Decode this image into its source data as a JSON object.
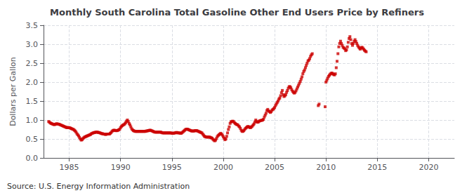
{
  "chart_data": {
    "type": "scatter",
    "title": "Monthly South Carolina Total Gasoline Other End Users Price by Refiners",
    "ylabel": "Dollars per Gallon",
    "annotations": [
      "Source: U.S. Energy Information Administration"
    ],
    "color": "#cc0000",
    "marker": "square",
    "grid": true,
    "xlim": [
      1982.5,
      2022.5
    ],
    "ylim": [
      0.0,
      3.5
    ],
    "xticks": [
      1985,
      1990,
      1995,
      2000,
      2005,
      2010,
      2015,
      2020
    ],
    "yticks": [
      {
        "value": 0.0,
        "label": "0.0"
      },
      0.5,
      {
        "value": 1.0,
        "label": "1.0"
      },
      1.5,
      {
        "value": 2.0,
        "label": "2.0"
      },
      2.5,
      {
        "value": 3.0,
        "label": "3.0"
      },
      3.5
    ],
    "x": [
      1983.0,
      1983.083,
      1983.167,
      1983.25,
      1983.333,
      1983.417,
      1983.5,
      1983.583,
      1983.667,
      1983.75,
      1983.833,
      1983.917,
      1984.0,
      1984.083,
      1984.167,
      1984.25,
      1984.333,
      1984.417,
      1984.5,
      1984.583,
      1984.667,
      1984.75,
      1984.833,
      1984.917,
      1985.0,
      1985.083,
      1985.167,
      1985.25,
      1985.333,
      1985.417,
      1985.5,
      1985.583,
      1985.667,
      1985.75,
      1985.833,
      1985.917,
      1986.0,
      1986.083,
      1986.167,
      1986.25,
      1986.333,
      1986.417,
      1986.5,
      1986.583,
      1986.667,
      1986.75,
      1986.833,
      1986.917,
      1987.0,
      1987.083,
      1987.167,
      1987.25,
      1987.333,
      1987.417,
      1987.5,
      1987.583,
      1987.667,
      1987.75,
      1987.833,
      1987.917,
      1988.0,
      1988.083,
      1988.167,
      1988.25,
      1988.333,
      1988.417,
      1988.5,
      1988.583,
      1988.667,
      1988.75,
      1988.833,
      1988.917,
      1989.0,
      1989.083,
      1989.167,
      1989.25,
      1989.333,
      1989.417,
      1989.5,
      1989.583,
      1989.667,
      1989.75,
      1989.833,
      1989.917,
      1990.0,
      1990.083,
      1990.167,
      1990.25,
      1990.333,
      1990.417,
      1990.5,
      1990.583,
      1990.667,
      1990.75,
      1990.833,
      1990.917,
      1991.0,
      1991.083,
      1991.167,
      1991.25,
      1991.333,
      1991.417,
      1991.5,
      1991.583,
      1991.667,
      1991.75,
      1991.833,
      1991.917,
      1992.0,
      1992.083,
      1992.167,
      1992.25,
      1992.333,
      1992.417,
      1992.5,
      1992.583,
      1992.667,
      1992.75,
      1992.833,
      1992.917,
      1993.0,
      1993.083,
      1993.167,
      1993.25,
      1993.333,
      1993.417,
      1993.5,
      1993.583,
      1993.667,
      1993.75,
      1993.833,
      1993.917,
      1994.0,
      1994.083,
      1994.167,
      1994.25,
      1994.333,
      1994.417,
      1994.5,
      1994.583,
      1994.667,
      1994.75,
      1994.833,
      1994.917,
      1995.0,
      1995.083,
      1995.167,
      1995.25,
      1995.333,
      1995.417,
      1995.5,
      1995.583,
      1995.667,
      1995.75,
      1995.833,
      1995.917,
      1996.0,
      1996.083,
      1996.167,
      1996.25,
      1996.333,
      1996.417,
      1996.5,
      1996.583,
      1996.667,
      1996.75,
      1996.833,
      1996.917,
      1997.0,
      1997.083,
      1997.167,
      1997.25,
      1997.333,
      1997.417,
      1997.5,
      1997.583,
      1997.667,
      1997.75,
      1997.833,
      1997.917,
      1998.0,
      1998.083,
      1998.167,
      1998.25,
      1998.333,
      1998.417,
      1998.5,
      1998.583,
      1998.667,
      1998.75,
      1998.833,
      1998.917,
      1999.0,
      1999.083,
      1999.167,
      1999.25,
      1999.333,
      1999.417,
      1999.5,
      1999.583,
      1999.667,
      1999.75,
      1999.833,
      1999.917,
      2000.0,
      2000.083,
      2000.167,
      2000.25,
      2000.333,
      2000.417,
      2000.5,
      2000.583,
      2000.667,
      2000.75,
      2000.833,
      2000.917,
      2001.0,
      2001.083,
      2001.167,
      2001.25,
      2001.333,
      2001.417,
      2001.5,
      2001.583,
      2001.667,
      2001.75,
      2001.833,
      2001.917,
      2002.0,
      2002.083,
      2002.167,
      2002.25,
      2002.333,
      2002.417,
      2002.5,
      2002.583,
      2002.667,
      2002.75,
      2002.833,
      2002.917,
      2003.0,
      2003.083,
      2003.167,
      2003.25,
      2003.333,
      2003.417,
      2003.5,
      2003.583,
      2003.667,
      2003.75,
      2003.833,
      2003.917,
      2004.0,
      2004.083,
      2004.167,
      2004.25,
      2004.333,
      2004.417,
      2004.5,
      2004.583,
      2004.667,
      2004.75,
      2004.833,
      2004.917,
      2005.0,
      2005.083,
      2005.167,
      2005.25,
      2005.333,
      2005.417,
      2005.5,
      2005.583,
      2005.667,
      2005.75,
      2005.833,
      2005.917,
      2006.0,
      2006.083,
      2006.167,
      2006.25,
      2006.333,
      2006.417,
      2006.5,
      2006.583,
      2006.667,
      2006.75,
      2006.833,
      2006.917,
      2007.0,
      2007.083,
      2007.167,
      2007.25,
      2007.333,
      2007.417,
      2007.5,
      2007.583,
      2007.667,
      2007.75,
      2007.833,
      2007.917,
      2008.0,
      2008.083,
      2008.167,
      2008.25,
      2008.333,
      2008.417,
      2008.5,
      2008.583,
      2008.667,
      2009.25,
      2009.333,
      2009.917,
      2010.0,
      2010.083,
      2010.167,
      2010.25,
      2010.333,
      2010.417,
      2010.5,
      2010.583,
      2010.667,
      2010.75,
      2010.833,
      2010.917,
      2011.0,
      2011.083,
      2011.167,
      2011.25,
      2011.333,
      2011.417,
      2011.5,
      2011.583,
      2011.667,
      2011.75,
      2011.833,
      2011.917,
      2012.0,
      2012.083,
      2012.167,
      2012.25,
      2012.333,
      2012.417,
      2012.5,
      2012.583,
      2012.667,
      2012.75,
      2012.833,
      2012.917,
      2013.0,
      2013.083,
      2013.167,
      2013.25,
      2013.333,
      2013.417,
      2013.5,
      2013.583,
      2013.667,
      2013.75,
      2013.833,
      2013.917
    ],
    "values": [
      0.96,
      0.94,
      0.92,
      0.91,
      0.9,
      0.89,
      0.88,
      0.88,
      0.89,
      0.9,
      0.9,
      0.89,
      0.89,
      0.88,
      0.87,
      0.86,
      0.85,
      0.84,
      0.83,
      0.82,
      0.81,
      0.8,
      0.8,
      0.8,
      0.8,
      0.79,
      0.78,
      0.77,
      0.76,
      0.75,
      0.73,
      0.71,
      0.68,
      0.64,
      0.61,
      0.58,
      0.54,
      0.5,
      0.47,
      0.48,
      0.51,
      0.53,
      0.55,
      0.56,
      0.57,
      0.58,
      0.59,
      0.6,
      0.61,
      0.62,
      0.64,
      0.65,
      0.66,
      0.67,
      0.67,
      0.68,
      0.68,
      0.68,
      0.67,
      0.67,
      0.66,
      0.65,
      0.64,
      0.64,
      0.63,
      0.63,
      0.62,
      0.62,
      0.63,
      0.63,
      0.63,
      0.63,
      0.65,
      0.67,
      0.7,
      0.72,
      0.73,
      0.73,
      0.72,
      0.72,
      0.72,
      0.73,
      0.74,
      0.76,
      0.8,
      0.83,
      0.85,
      0.87,
      0.88,
      0.9,
      0.93,
      0.97,
      1.0,
      0.96,
      0.91,
      0.87,
      0.82,
      0.77,
      0.74,
      0.72,
      0.71,
      0.7,
      0.7,
      0.7,
      0.7,
      0.7,
      0.7,
      0.7,
      0.7,
      0.7,
      0.7,
      0.7,
      0.7,
      0.7,
      0.71,
      0.71,
      0.72,
      0.72,
      0.73,
      0.73,
      0.72,
      0.71,
      0.7,
      0.69,
      0.68,
      0.68,
      0.68,
      0.68,
      0.68,
      0.68,
      0.68,
      0.68,
      0.67,
      0.66,
      0.66,
      0.66,
      0.66,
      0.66,
      0.66,
      0.66,
      0.66,
      0.66,
      0.66,
      0.66,
      0.65,
      0.65,
      0.65,
      0.66,
      0.66,
      0.67,
      0.67,
      0.66,
      0.66,
      0.66,
      0.65,
      0.65,
      0.67,
      0.69,
      0.71,
      0.73,
      0.75,
      0.76,
      0.76,
      0.75,
      0.74,
      0.73,
      0.72,
      0.71,
      0.71,
      0.71,
      0.71,
      0.72,
      0.72,
      0.72,
      0.71,
      0.7,
      0.69,
      0.68,
      0.67,
      0.66,
      0.63,
      0.6,
      0.57,
      0.56,
      0.55,
      0.55,
      0.55,
      0.55,
      0.55,
      0.54,
      0.53,
      0.52,
      0.49,
      0.47,
      0.45,
      0.47,
      0.51,
      0.56,
      0.59,
      0.61,
      0.63,
      0.65,
      0.63,
      0.6,
      0.56,
      0.52,
      0.48,
      0.5,
      0.57,
      0.66,
      0.75,
      0.82,
      0.91,
      0.95,
      0.96,
      0.97,
      0.96,
      0.93,
      0.91,
      0.89,
      0.88,
      0.87,
      0.84,
      0.82,
      0.78,
      0.73,
      0.7,
      0.7,
      0.72,
      0.75,
      0.78,
      0.8,
      0.82,
      0.83,
      0.82,
      0.8,
      0.8,
      0.82,
      0.84,
      0.87,
      0.9,
      0.95,
      1.0,
      0.96,
      0.94,
      0.95,
      0.97,
      0.98,
      0.99,
      0.99,
      1.0,
      1.02,
      1.08,
      1.13,
      1.18,
      1.25,
      1.28,
      1.24,
      1.22,
      1.2,
      1.22,
      1.26,
      1.28,
      1.3,
      1.33,
      1.38,
      1.42,
      1.46,
      1.5,
      1.55,
      1.58,
      1.64,
      1.72,
      1.78,
      1.67,
      1.62,
      1.64,
      1.67,
      1.73,
      1.78,
      1.84,
      1.88,
      1.88,
      1.85,
      1.8,
      1.76,
      1.73,
      1.71,
      1.73,
      1.77,
      1.82,
      1.87,
      1.92,
      1.97,
      2.02,
      2.08,
      2.14,
      2.22,
      2.28,
      2.32,
      2.38,
      2.44,
      2.5,
      2.56,
      2.58,
      2.62,
      2.68,
      2.72,
      2.75,
      1.38,
      1.42,
      1.35,
      2.0,
      2.05,
      2.1,
      2.15,
      2.18,
      2.21,
      2.23,
      2.24,
      2.22,
      2.2,
      2.19,
      2.22,
      2.38,
      2.55,
      2.75,
      2.93,
      3.02,
      3.08,
      3.02,
      2.97,
      2.92,
      2.9,
      2.88,
      2.83,
      2.85,
      2.93,
      3.05,
      3.15,
      3.2,
      3.12,
      3.02,
      2.97,
      3.02,
      3.08,
      3.12,
      3.07,
      3.02,
      2.97,
      2.93,
      2.9,
      2.87,
      2.9,
      2.92,
      2.9,
      2.87,
      2.84,
      2.82,
      2.8
    ]
  }
}
